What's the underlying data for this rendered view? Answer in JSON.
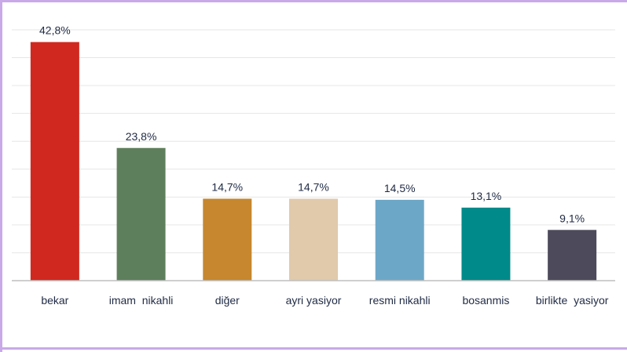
{
  "chart_data": {
    "type": "bar",
    "title": "",
    "xlabel": "",
    "ylabel": "",
    "ylim": [
      0,
      45
    ],
    "grid": true,
    "categories": [
      "bekar",
      "imam  nikahli",
      "diğer",
      "ayri yasiyor",
      "resmi nikahli",
      "bosanmis",
      "birlikte  yasiyor"
    ],
    "values": [
      42.8,
      23.8,
      14.7,
      14.7,
      14.5,
      13.1,
      9.1
    ],
    "value_labels": [
      "42,8%",
      "23,8%",
      "14,7%",
      "14,7%",
      "14,5%",
      "13,1%",
      "9,1%"
    ],
    "colors": [
      "#d0281f",
      "#5e7f5c",
      "#c6872e",
      "#e1c9ac",
      "#6da7c8",
      "#008a8a",
      "#4d4a5c"
    ]
  }
}
